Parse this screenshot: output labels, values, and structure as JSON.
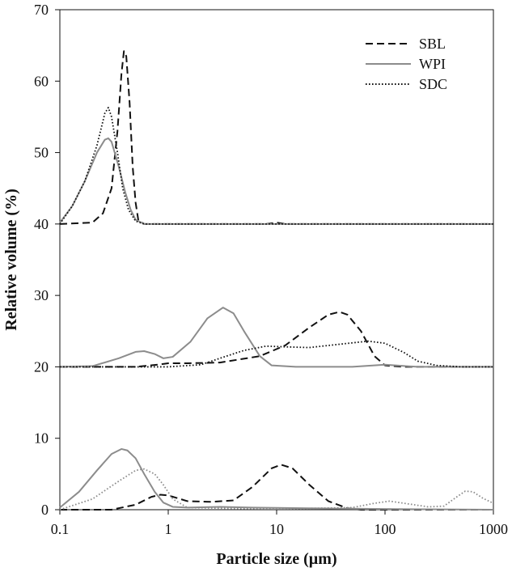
{
  "chart_data": {
    "type": "line",
    "xlabel": "Particle size (µm)",
    "ylabel": "Relative volume (%)",
    "x_scale": "log",
    "xlim": [
      0.1,
      1000
    ],
    "ylim": [
      0,
      70
    ],
    "x_ticks": [
      0.1,
      1,
      10,
      100,
      1000
    ],
    "x_tick_labels": [
      "0.1",
      "1",
      "10",
      "100",
      "1000"
    ],
    "y_ticks": [
      0,
      10,
      20,
      30,
      40,
      50,
      60,
      70
    ],
    "y_tick_labels": [
      "0",
      "10",
      "20",
      "30",
      "40",
      "50",
      "60",
      "70"
    ],
    "grid": false,
    "legend_position": "top-right",
    "legend": [
      {
        "label": "SBL",
        "style": "dashed",
        "color": "#111111"
      },
      {
        "label": "WPI",
        "style": "solid",
        "color": "#8c8c8c"
      },
      {
        "label": "SDC",
        "style": "dotted",
        "color": "#111111"
      }
    ],
    "series": [
      {
        "group": "offset-40",
        "style": "dashed",
        "color": "#111111",
        "points": [
          [
            0.1,
            40
          ],
          [
            0.2,
            40.2
          ],
          [
            0.25,
            41.5
          ],
          [
            0.3,
            45
          ],
          [
            0.34,
            53
          ],
          [
            0.37,
            61
          ],
          [
            0.39,
            64.2
          ],
          [
            0.41,
            63.5
          ],
          [
            0.44,
            57
          ],
          [
            0.47,
            48
          ],
          [
            0.5,
            43
          ],
          [
            0.53,
            40.5
          ],
          [
            0.6,
            40
          ],
          [
            1,
            40
          ],
          [
            8,
            40
          ],
          [
            10,
            40.2
          ],
          [
            12,
            40
          ],
          [
            1000,
            40
          ]
        ]
      },
      {
        "group": "offset-40",
        "style": "solid",
        "color": "#8c8c8c",
        "points": [
          [
            0.1,
            40.2
          ],
          [
            0.13,
            42.5
          ],
          [
            0.17,
            46
          ],
          [
            0.22,
            50
          ],
          [
            0.26,
            51.8
          ],
          [
            0.28,
            52
          ],
          [
            0.3,
            51.5
          ],
          [
            0.35,
            48
          ],
          [
            0.4,
            44.5
          ],
          [
            0.45,
            42
          ],
          [
            0.5,
            40.6
          ],
          [
            0.6,
            40
          ],
          [
            1000,
            40
          ]
        ]
      },
      {
        "group": "offset-40",
        "style": "dotted",
        "color": "#111111",
        "points": [
          [
            0.1,
            40
          ],
          [
            0.13,
            42.5
          ],
          [
            0.17,
            46
          ],
          [
            0.22,
            51
          ],
          [
            0.26,
            55.5
          ],
          [
            0.28,
            56.3
          ],
          [
            0.3,
            55
          ],
          [
            0.34,
            50
          ],
          [
            0.38,
            45
          ],
          [
            0.43,
            42
          ],
          [
            0.5,
            40.4
          ],
          [
            0.6,
            40
          ],
          [
            1000,
            40
          ]
        ]
      },
      {
        "group": "offset-20",
        "style": "dashed",
        "color": "#111111",
        "points": [
          [
            0.1,
            20
          ],
          [
            0.5,
            20
          ],
          [
            0.8,
            20.3
          ],
          [
            1,
            20.5
          ],
          [
            1.5,
            20.5
          ],
          [
            3,
            20.6
          ],
          [
            7,
            21.5
          ],
          [
            12,
            23
          ],
          [
            20,
            25.5
          ],
          [
            30,
            27.3
          ],
          [
            38,
            27.7
          ],
          [
            45,
            27.3
          ],
          [
            60,
            25
          ],
          [
            80,
            21.5
          ],
          [
            100,
            20.2
          ],
          [
            150,
            20
          ],
          [
            1000,
            20
          ]
        ]
      },
      {
        "group": "offset-20",
        "style": "solid",
        "color": "#8c8c8c",
        "points": [
          [
            0.1,
            20
          ],
          [
            0.2,
            20.1
          ],
          [
            0.35,
            21.2
          ],
          [
            0.5,
            22.1
          ],
          [
            0.6,
            22.2
          ],
          [
            0.75,
            21.8
          ],
          [
            0.9,
            21.2
          ],
          [
            1.1,
            21.4
          ],
          [
            1.6,
            23.5
          ],
          [
            2.3,
            26.8
          ],
          [
            3.2,
            28.3
          ],
          [
            4,
            27.5
          ],
          [
            5,
            25
          ],
          [
            7,
            21.5
          ],
          [
            9,
            20.2
          ],
          [
            15,
            20
          ],
          [
            50,
            20
          ],
          [
            100,
            20.3
          ],
          [
            200,
            20
          ],
          [
            1000,
            20
          ]
        ]
      },
      {
        "group": "offset-20",
        "style": "dotted",
        "color": "#111111",
        "points": [
          [
            0.1,
            20
          ],
          [
            1,
            20
          ],
          [
            2,
            20.3
          ],
          [
            3,
            21.2
          ],
          [
            5,
            22.3
          ],
          [
            8,
            22.9
          ],
          [
            12,
            22.8
          ],
          [
            20,
            22.7
          ],
          [
            40,
            23.2
          ],
          [
            70,
            23.6
          ],
          [
            100,
            23.3
          ],
          [
            150,
            22
          ],
          [
            200,
            20.8
          ],
          [
            300,
            20.2
          ],
          [
            500,
            20
          ],
          [
            1000,
            20
          ]
        ]
      },
      {
        "group": "offset-0",
        "style": "dashed",
        "color": "#111111",
        "points": [
          [
            0.1,
            0
          ],
          [
            0.3,
            0
          ],
          [
            0.5,
            0.7
          ],
          [
            0.7,
            1.8
          ],
          [
            0.85,
            2.1
          ],
          [
            1,
            2
          ],
          [
            1.5,
            1.2
          ],
          [
            2.5,
            1.1
          ],
          [
            4,
            1.3
          ],
          [
            6,
            3.2
          ],
          [
            9,
            5.8
          ],
          [
            11,
            6.3
          ],
          [
            14,
            5.8
          ],
          [
            20,
            3.5
          ],
          [
            30,
            1.2
          ],
          [
            45,
            0.2
          ],
          [
            60,
            0
          ],
          [
            1000,
            0
          ]
        ]
      },
      {
        "group": "offset-0",
        "style": "solid",
        "color": "#8c8c8c",
        "points": [
          [
            0.1,
            0.3
          ],
          [
            0.15,
            2.5
          ],
          [
            0.22,
            5.5
          ],
          [
            0.3,
            7.8
          ],
          [
            0.37,
            8.5
          ],
          [
            0.42,
            8.3
          ],
          [
            0.5,
            7.2
          ],
          [
            0.6,
            5
          ],
          [
            0.75,
            2.5
          ],
          [
            0.9,
            1
          ],
          [
            1.1,
            0.4
          ],
          [
            1.5,
            0.3
          ],
          [
            3,
            0.4
          ],
          [
            6,
            0.3
          ],
          [
            20,
            0.2
          ],
          [
            100,
            0.1
          ],
          [
            1000,
            0
          ]
        ]
      },
      {
        "group": "offset-0",
        "style": "dotted",
        "color": "#8c8c8c",
        "points": [
          [
            0.1,
            0
          ],
          [
            0.2,
            1.5
          ],
          [
            0.35,
            4
          ],
          [
            0.5,
            5.5
          ],
          [
            0.6,
            5.7
          ],
          [
            0.75,
            5
          ],
          [
            0.9,
            3.5
          ],
          [
            1.1,
            1.5
          ],
          [
            1.5,
            0.3
          ],
          [
            3,
            0.2
          ],
          [
            10,
            0.1
          ],
          [
            50,
            0.3
          ],
          [
            80,
            0.9
          ],
          [
            110,
            1.2
          ],
          [
            150,
            0.9
          ],
          [
            250,
            0.4
          ],
          [
            350,
            0.5
          ],
          [
            450,
            1.7
          ],
          [
            550,
            2.6
          ],
          [
            650,
            2.5
          ],
          [
            800,
            1.6
          ],
          [
            1000,
            0.9
          ]
        ]
      }
    ]
  }
}
